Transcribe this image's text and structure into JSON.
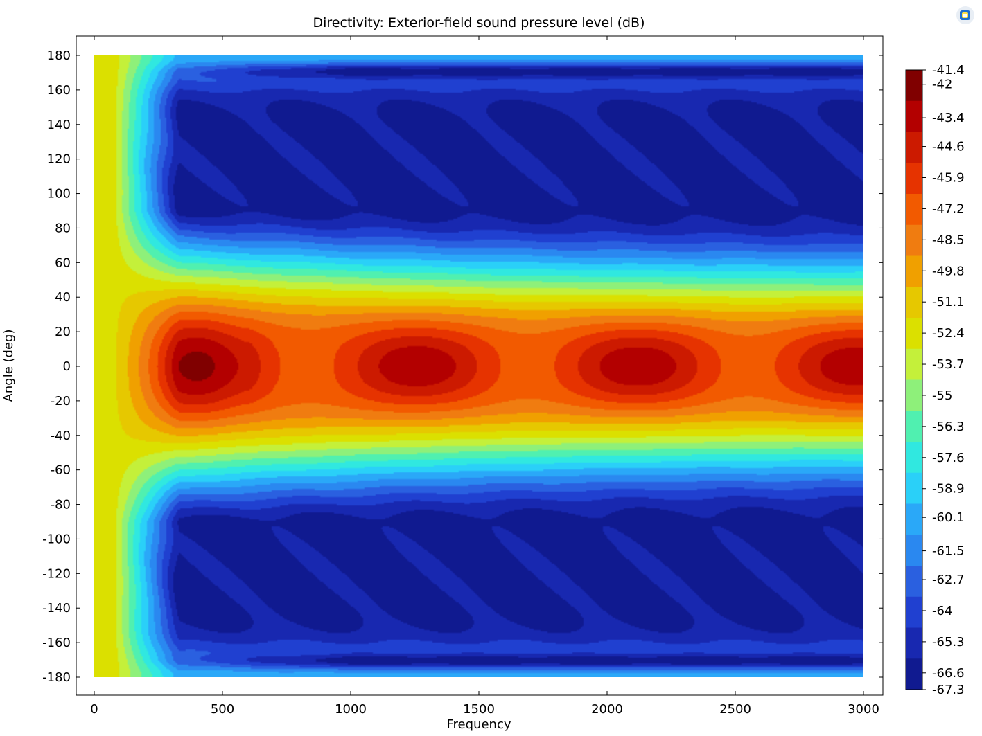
{
  "chart_data": {
    "type": "heatmap",
    "title": "Directivity: Exterior-field sound pressure level (dB)",
    "xlabel": "Frequency",
    "ylabel": "Angle (deg)",
    "xlim": [
      0,
      3000
    ],
    "ylim": [
      -180,
      180
    ],
    "x_ticks": [
      "0",
      "500",
      "1000",
      "1500",
      "2000",
      "2500",
      "3000"
    ],
    "y_ticks": [
      "180",
      "160",
      "140",
      "120",
      "100",
      "80",
      "60",
      "40",
      "20",
      "0",
      "-20",
      "-40",
      "-60",
      "-80",
      "-100",
      "-120",
      "-140",
      "-160",
      "-180"
    ],
    "colorbar": {
      "max": -41.4,
      "min": -67.3,
      "labels": [
        "-41.4",
        "-42",
        "-43.4",
        "-44.6",
        "-45.9",
        "-47.2",
        "-48.5",
        "-49.8",
        "-51.1",
        "-52.4",
        "-53.7",
        "-55",
        "-56.3",
        "-57.6",
        "-58.9",
        "-60.1",
        "-61.5",
        "-62.7",
        "-64",
        "-65.3",
        "-66.6",
        "-67.3"
      ],
      "label_values": [
        -41.4,
        -42,
        -43.4,
        -44.6,
        -45.9,
        -47.2,
        -48.5,
        -49.8,
        -51.1,
        -52.4,
        -53.7,
        -55,
        -56.3,
        -57.6,
        -58.9,
        -60.1,
        -61.5,
        -62.7,
        -64,
        -65.3,
        -66.6,
        -67.3
      ],
      "colors": [
        "#800000",
        "#b30000",
        "#cc1a00",
        "#e63300",
        "#f25a00",
        "#f07c10",
        "#f0a000",
        "#e6c800",
        "#dbe000",
        "#c4f03a",
        "#8ef07a",
        "#50f0b0",
        "#30e8e0",
        "#2ad0f8",
        "#2aa8f8",
        "#2a88f0",
        "#2a60e0",
        "#2040d0",
        "#1828b0",
        "#101a90"
      ]
    },
    "features": {
      "main_lobe_peak_db": -41.4,
      "main_lobe_peak_frequency": 400,
      "main_lobe_peak_angle": 0,
      "on_axis_dips_frequency": [
        840,
        1700,
        2560
      ],
      "on_axis_peaks_frequency": [
        1270,
        2130,
        2970
      ],
      "deep_nulls_angle": [
        170,
        -170
      ],
      "low_frequency_level_db": -52.4
    }
  },
  "corner_icon": "comsol-logo-icon"
}
